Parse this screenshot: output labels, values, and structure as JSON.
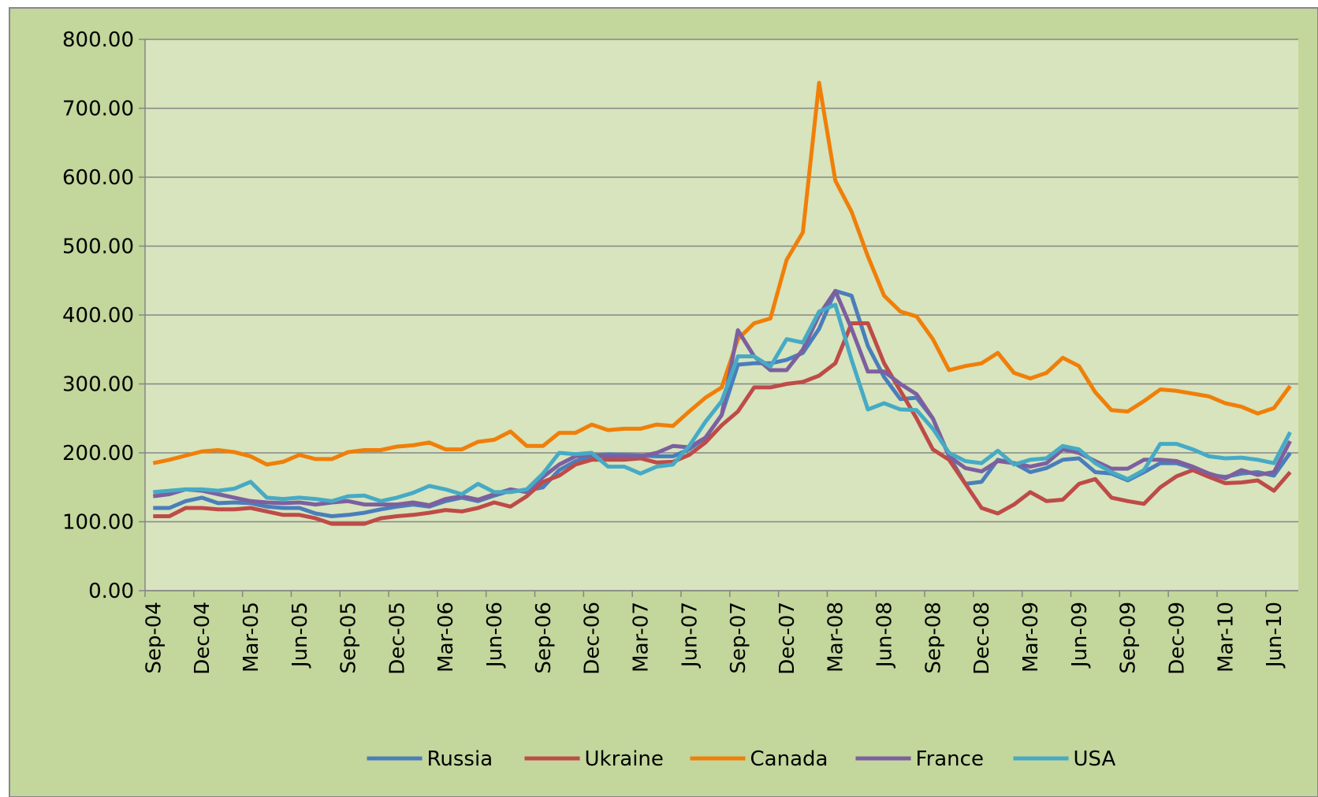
{
  "chart_data": {
    "type": "line",
    "categories": [
      "Sep-04",
      null,
      null,
      "Dec-04",
      null,
      null,
      "Mar-05",
      null,
      null,
      "Jun-05",
      null,
      null,
      "Sep-05",
      null,
      null,
      "Dec-05",
      null,
      null,
      "Mar-06",
      null,
      null,
      "Jun-06",
      null,
      null,
      "Sep-06",
      null,
      null,
      "Dec-06",
      null,
      null,
      "Mar-07",
      null,
      null,
      "Jun-07",
      null,
      null,
      "Sep-07",
      null,
      null,
      "Dec-07",
      null,
      null,
      "Mar-08",
      null,
      null,
      "Jun-08",
      null,
      null,
      "Sep-08",
      null,
      null,
      "Dec-08",
      null,
      null,
      "Mar-09",
      null,
      null,
      "Jun-09",
      null,
      null,
      "Sep-09",
      null,
      null,
      "Dec-09",
      null,
      null,
      "Mar-10",
      null,
      null,
      "Jun-10",
      null
    ],
    "series": [
      {
        "name": "Russia",
        "color": "#4a7ebb",
        "values": [
          120,
          120,
          130,
          135,
          127,
          128,
          127,
          122,
          120,
          120,
          112,
          108,
          110,
          113,
          118,
          122,
          125,
          122,
          130,
          135,
          130,
          138,
          145,
          145,
          150,
          175,
          188,
          195,
          198,
          197,
          196,
          195,
          195,
          205,
          222,
          255,
          328,
          330,
          330,
          335,
          345,
          380,
          435,
          428,
          355,
          310,
          278,
          280,
          250,
          195,
          155,
          158,
          190,
          185,
          172,
          178,
          190,
          192,
          172,
          170,
          160,
          172,
          185,
          185,
          178,
          168,
          165,
          170,
          172,
          167,
          200
        ]
      },
      {
        "name": "Ukraine",
        "color": "#be4b48",
        "values": [
          108,
          108,
          120,
          120,
          118,
          118,
          120,
          115,
          110,
          110,
          105,
          97,
          97,
          97,
          105,
          108,
          110,
          113,
          117,
          115,
          120,
          128,
          122,
          137,
          158,
          167,
          183,
          190,
          190,
          190,
          192,
          186,
          187,
          197,
          215,
          240,
          260,
          295,
          295,
          300,
          303,
          312,
          330,
          388,
          388,
          330,
          290,
          250,
          205,
          190,
          155,
          120,
          112,
          125,
          143,
          130,
          132,
          155,
          162,
          135,
          130,
          126,
          150,
          166,
          175,
          165,
          156,
          157,
          160,
          145,
          172
        ]
      },
      {
        "name": "Canada",
        "color": "#f07f09",
        "values": [
          185,
          190,
          196,
          202,
          204,
          201,
          195,
          183,
          187,
          197,
          191,
          191,
          201,
          204,
          204,
          209,
          211,
          215,
          205,
          205,
          216,
          219,
          231,
          210,
          210,
          229,
          229,
          241,
          233,
          235,
          235,
          241,
          239,
          260,
          280,
          295,
          365,
          388,
          395,
          480,
          520,
          737,
          595,
          550,
          485,
          428,
          405,
          398,
          365,
          320,
          326,
          330,
          345,
          316,
          308,
          316,
          338,
          326,
          288,
          262,
          260,
          275,
          292,
          290,
          286,
          282,
          272,
          267,
          257,
          265,
          297
        ]
      },
      {
        "name": "France",
        "color": "#7d5fa0",
        "values": [
          137,
          140,
          147,
          145,
          140,
          135,
          130,
          128,
          127,
          128,
          125,
          128,
          130,
          125,
          125,
          125,
          128,
          124,
          133,
          137,
          132,
          140,
          147,
          143,
          165,
          183,
          195,
          197,
          195,
          195,
          195,
          200,
          210,
          208,
          222,
          255,
          378,
          340,
          320,
          320,
          350,
          400,
          435,
          380,
          318,
          318,
          300,
          285,
          250,
          195,
          178,
          173,
          188,
          185,
          180,
          185,
          205,
          200,
          188,
          177,
          177,
          190,
          190,
          188,
          180,
          170,
          163,
          175,
          168,
          172,
          217
        ]
      },
      {
        "name": "USA",
        "color": "#46aac5",
        "values": [
          143,
          145,
          147,
          147,
          145,
          148,
          158,
          135,
          133,
          135,
          133,
          130,
          137,
          138,
          130,
          135,
          142,
          152,
          147,
          140,
          155,
          143,
          143,
          147,
          170,
          200,
          198,
          200,
          180,
          180,
          170,
          180,
          183,
          210,
          245,
          275,
          340,
          340,
          325,
          365,
          360,
          405,
          415,
          335,
          263,
          272,
          263,
          262,
          235,
          200,
          188,
          185,
          203,
          183,
          190,
          192,
          210,
          205,
          185,
          172,
          162,
          175,
          213,
          213,
          205,
          195,
          192,
          193,
          190,
          185,
          230
        ]
      }
    ],
    "ylim": [
      0,
      800
    ],
    "yticks": [
      {
        "value": 0,
        "label": "0.00"
      },
      {
        "value": 100,
        "label": "100.00"
      },
      {
        "value": 200,
        "label": "200.00"
      },
      {
        "value": 300,
        "label": "300.00"
      },
      {
        "value": 400,
        "label": "400.00"
      },
      {
        "value": 500,
        "label": "500.00"
      },
      {
        "value": 600,
        "label": "600.00"
      },
      {
        "value": 700,
        "label": "700.00"
      },
      {
        "value": 800,
        "label": "800.00"
      }
    ],
    "grid": true,
    "legend": "bottom"
  }
}
